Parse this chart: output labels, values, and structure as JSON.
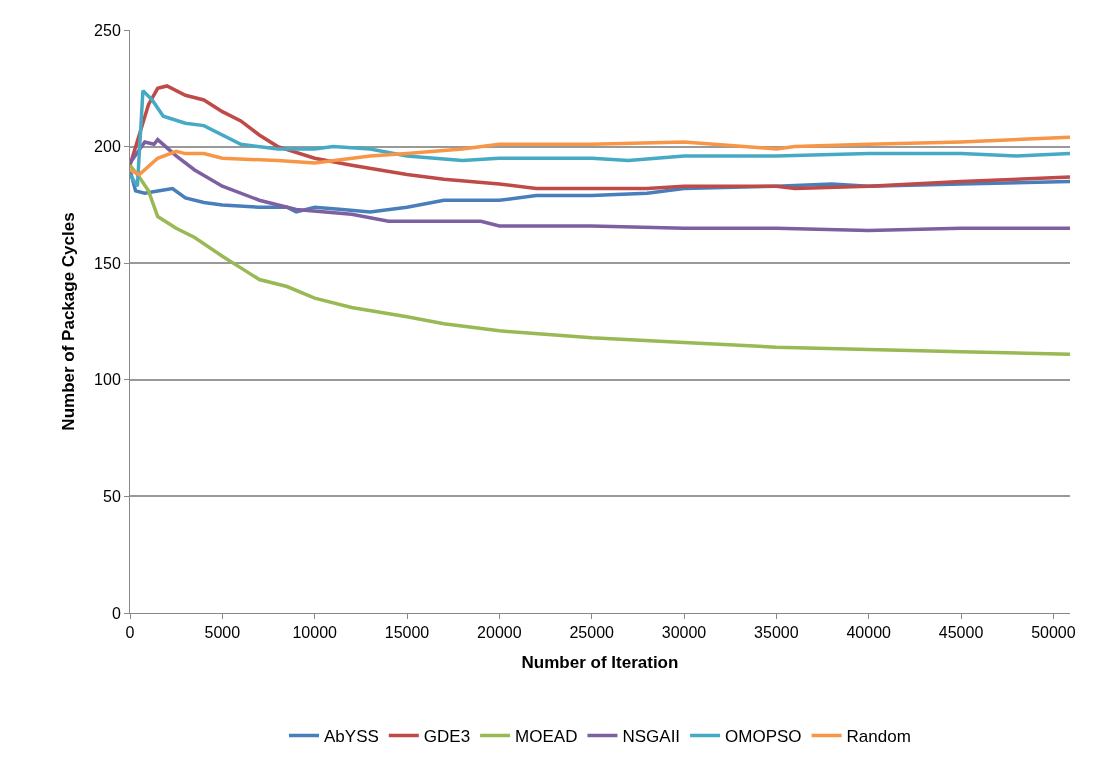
{
  "chart_data": {
    "type": "line",
    "xlabel": "Number of Iteration",
    "ylabel": "Number of Package Cycles",
    "xlim": [
      0,
      50900
    ],
    "xticks": [
      0,
      5000,
      10000,
      15000,
      20000,
      25000,
      30000,
      35000,
      40000,
      45000,
      50000
    ],
    "ylim": [
      0,
      250
    ],
    "yticks": [
      0,
      50,
      100,
      150,
      200,
      250
    ],
    "grid": "y",
    "legend": "bottom",
    "marker": "none",
    "line_style": "solid",
    "series": [
      {
        "name": "AbYSS",
        "color": "#4a7ebb",
        "x": [
          0,
          300,
          800,
          1500,
          2300,
          3000,
          4000,
          5000,
          7000,
          8500,
          9000,
          10000,
          11500,
          13000,
          15000,
          17000,
          20000,
          22000,
          25000,
          28000,
          30000,
          35000,
          38000,
          40000,
          45000,
          50900
        ],
        "values": [
          190,
          181,
          180,
          181,
          182,
          178,
          176,
          175,
          174,
          174,
          172,
          174,
          173,
          172,
          174,
          177,
          177,
          179,
          179,
          180,
          182,
          183,
          184,
          183,
          184,
          185
        ]
      },
      {
        "name": "GDE3",
        "color": "#be4b48",
        "x": [
          0,
          1000,
          1500,
          2000,
          3000,
          4000,
          5000,
          6000,
          7000,
          8000,
          10000,
          12000,
          15000,
          17000,
          20000,
          22000,
          25000,
          28000,
          30000,
          33000,
          35000,
          36000,
          40000,
          45000,
          50900
        ],
        "values": [
          192,
          218,
          225,
          226,
          222,
          220,
          215,
          211,
          205,
          200,
          195,
          192,
          188,
          186,
          184,
          182,
          182,
          182,
          183,
          183,
          183,
          182,
          183,
          185,
          187
        ]
      },
      {
        "name": "MOEAD",
        "color": "#98b954",
        "x": [
          0,
          500,
          1000,
          1500,
          2500,
          3500,
          5000,
          6000,
          7000,
          8500,
          10000,
          12000,
          15000,
          17000,
          20000,
          25000,
          30000,
          35000,
          40000,
          45000,
          50900
        ],
        "values": [
          192,
          187,
          181,
          170,
          165,
          161,
          153,
          148,
          143,
          140,
          135,
          131,
          127,
          124,
          121,
          118,
          116,
          114,
          113,
          112,
          111
        ]
      },
      {
        "name": "NSGAII",
        "color": "#7d60a0",
        "x": [
          0,
          800,
          1300,
          1500,
          2500,
          3500,
          5000,
          7000,
          9000,
          12000,
          14000,
          19000,
          20000,
          25000,
          30000,
          35000,
          40000,
          45000,
          50900
        ],
        "values": [
          193,
          202,
          201,
          203,
          196,
          190,
          183,
          177,
          173,
          171,
          168,
          168,
          166,
          166,
          165,
          165,
          164,
          165,
          165
        ]
      },
      {
        "name": "OMOPSO",
        "color": "#46aac5",
        "x": [
          0,
          400,
          700,
          1200,
          1800,
          3000,
          4000,
          6000,
          8000,
          10000,
          11000,
          13000,
          15000,
          18000,
          20000,
          25000,
          27000,
          30000,
          35000,
          40000,
          45000,
          48000,
          50900
        ],
        "values": [
          188,
          183,
          224,
          220,
          213,
          210,
          209,
          201,
          199,
          199,
          200,
          199,
          196,
          194,
          195,
          195,
          194,
          196,
          196,
          197,
          197,
          196,
          197
        ]
      },
      {
        "name": "Random",
        "color": "#f79646",
        "x": [
          0,
          500,
          1500,
          2500,
          3000,
          4000,
          5000,
          8000,
          10000,
          13000,
          15000,
          18000,
          20000,
          25000,
          30000,
          35000,
          36000,
          40000,
          45000,
          50900
        ],
        "values": [
          190,
          188,
          195,
          198,
          197,
          197,
          195,
          194,
          193,
          196,
          197,
          199,
          201,
          201,
          202,
          199,
          200,
          201,
          202,
          204
        ]
      }
    ]
  }
}
